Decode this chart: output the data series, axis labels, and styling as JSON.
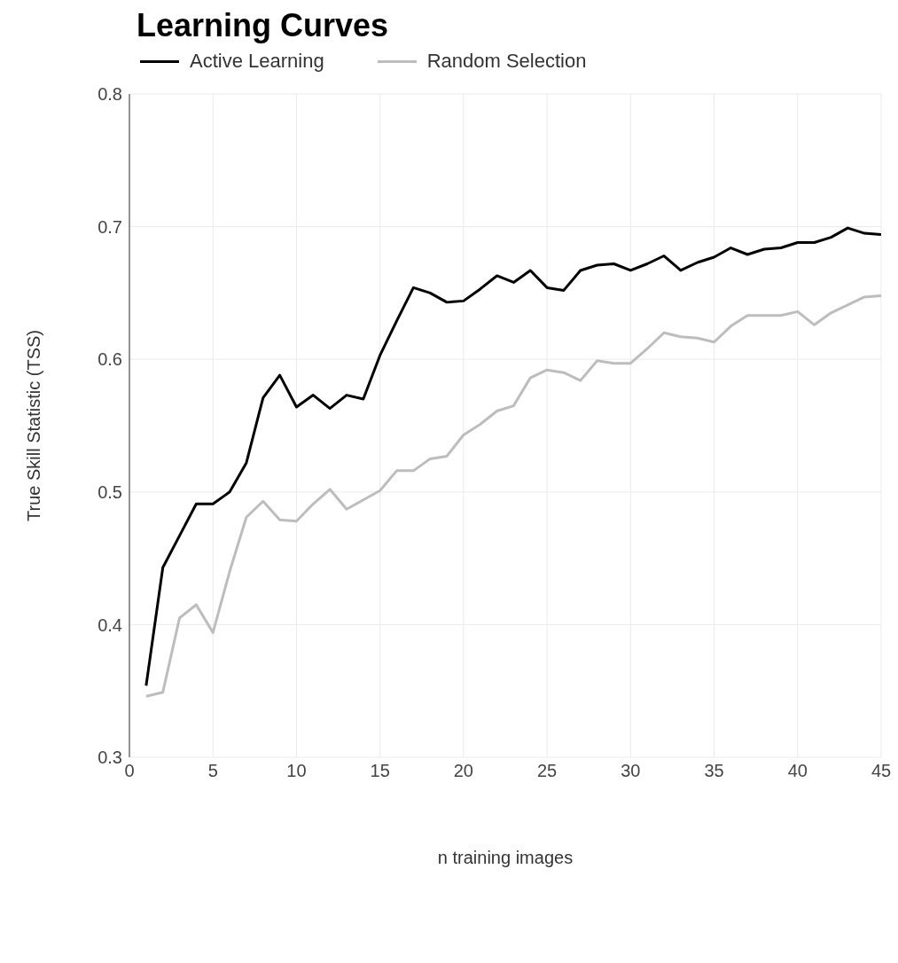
{
  "chart_data": {
    "type": "line",
    "title": "Learning Curves",
    "xlabel": "n training images",
    "ylabel": "True Skill Statistic (TSS)",
    "x": [
      1,
      2,
      3,
      4,
      5,
      6,
      7,
      8,
      9,
      10,
      11,
      12,
      13,
      14,
      15,
      16,
      17,
      18,
      19,
      20,
      21,
      22,
      23,
      24,
      25,
      26,
      27,
      28,
      29,
      30,
      31,
      32,
      33,
      34,
      35,
      36,
      37,
      38,
      39,
      40,
      41,
      42,
      43,
      44,
      45
    ],
    "series": [
      {
        "name": "Active Learning",
        "color": "#000000",
        "values": [
          0.354,
          0.443,
          0.467,
          0.491,
          0.491,
          0.5,
          0.522,
          0.571,
          0.588,
          0.564,
          0.573,
          0.563,
          0.573,
          0.57,
          0.603,
          0.629,
          0.654,
          0.65,
          0.643,
          0.644,
          0.653,
          0.663,
          0.658,
          0.667,
          0.654,
          0.652,
          0.667,
          0.671,
          0.672,
          0.667,
          0.672,
          0.678,
          0.667,
          0.673,
          0.677,
          0.684,
          0.679,
          0.683,
          0.684,
          0.688,
          0.688,
          0.692,
          0.699,
          0.695,
          0.694
        ]
      },
      {
        "name": "Random Selection",
        "color": "#bdbdbd",
        "values": [
          0.346,
          0.349,
          0.405,
          0.415,
          0.394,
          0.44,
          0.481,
          0.493,
          0.479,
          0.478,
          0.491,
          0.502,
          0.487,
          0.494,
          0.501,
          0.516,
          0.516,
          0.525,
          0.527,
          0.543,
          0.551,
          0.561,
          0.565,
          0.586,
          0.592,
          0.59,
          0.584,
          0.599,
          0.597,
          0.597,
          0.608,
          0.62,
          0.617,
          0.616,
          0.613,
          0.625,
          0.633,
          0.633,
          0.633,
          0.636,
          0.626,
          0.635,
          0.641,
          0.647,
          0.648
        ]
      }
    ],
    "xlim": [
      0,
      45
    ],
    "xticks": [
      0,
      5,
      10,
      15,
      20,
      25,
      30,
      35,
      40,
      45
    ],
    "ylim": [
      0.3,
      0.8
    ],
    "yticks": [
      0.3,
      0.4,
      0.5,
      0.6,
      0.7,
      0.8
    ],
    "grid": true,
    "legend": "top left",
    "marker": "none",
    "line_style": "solid"
  }
}
